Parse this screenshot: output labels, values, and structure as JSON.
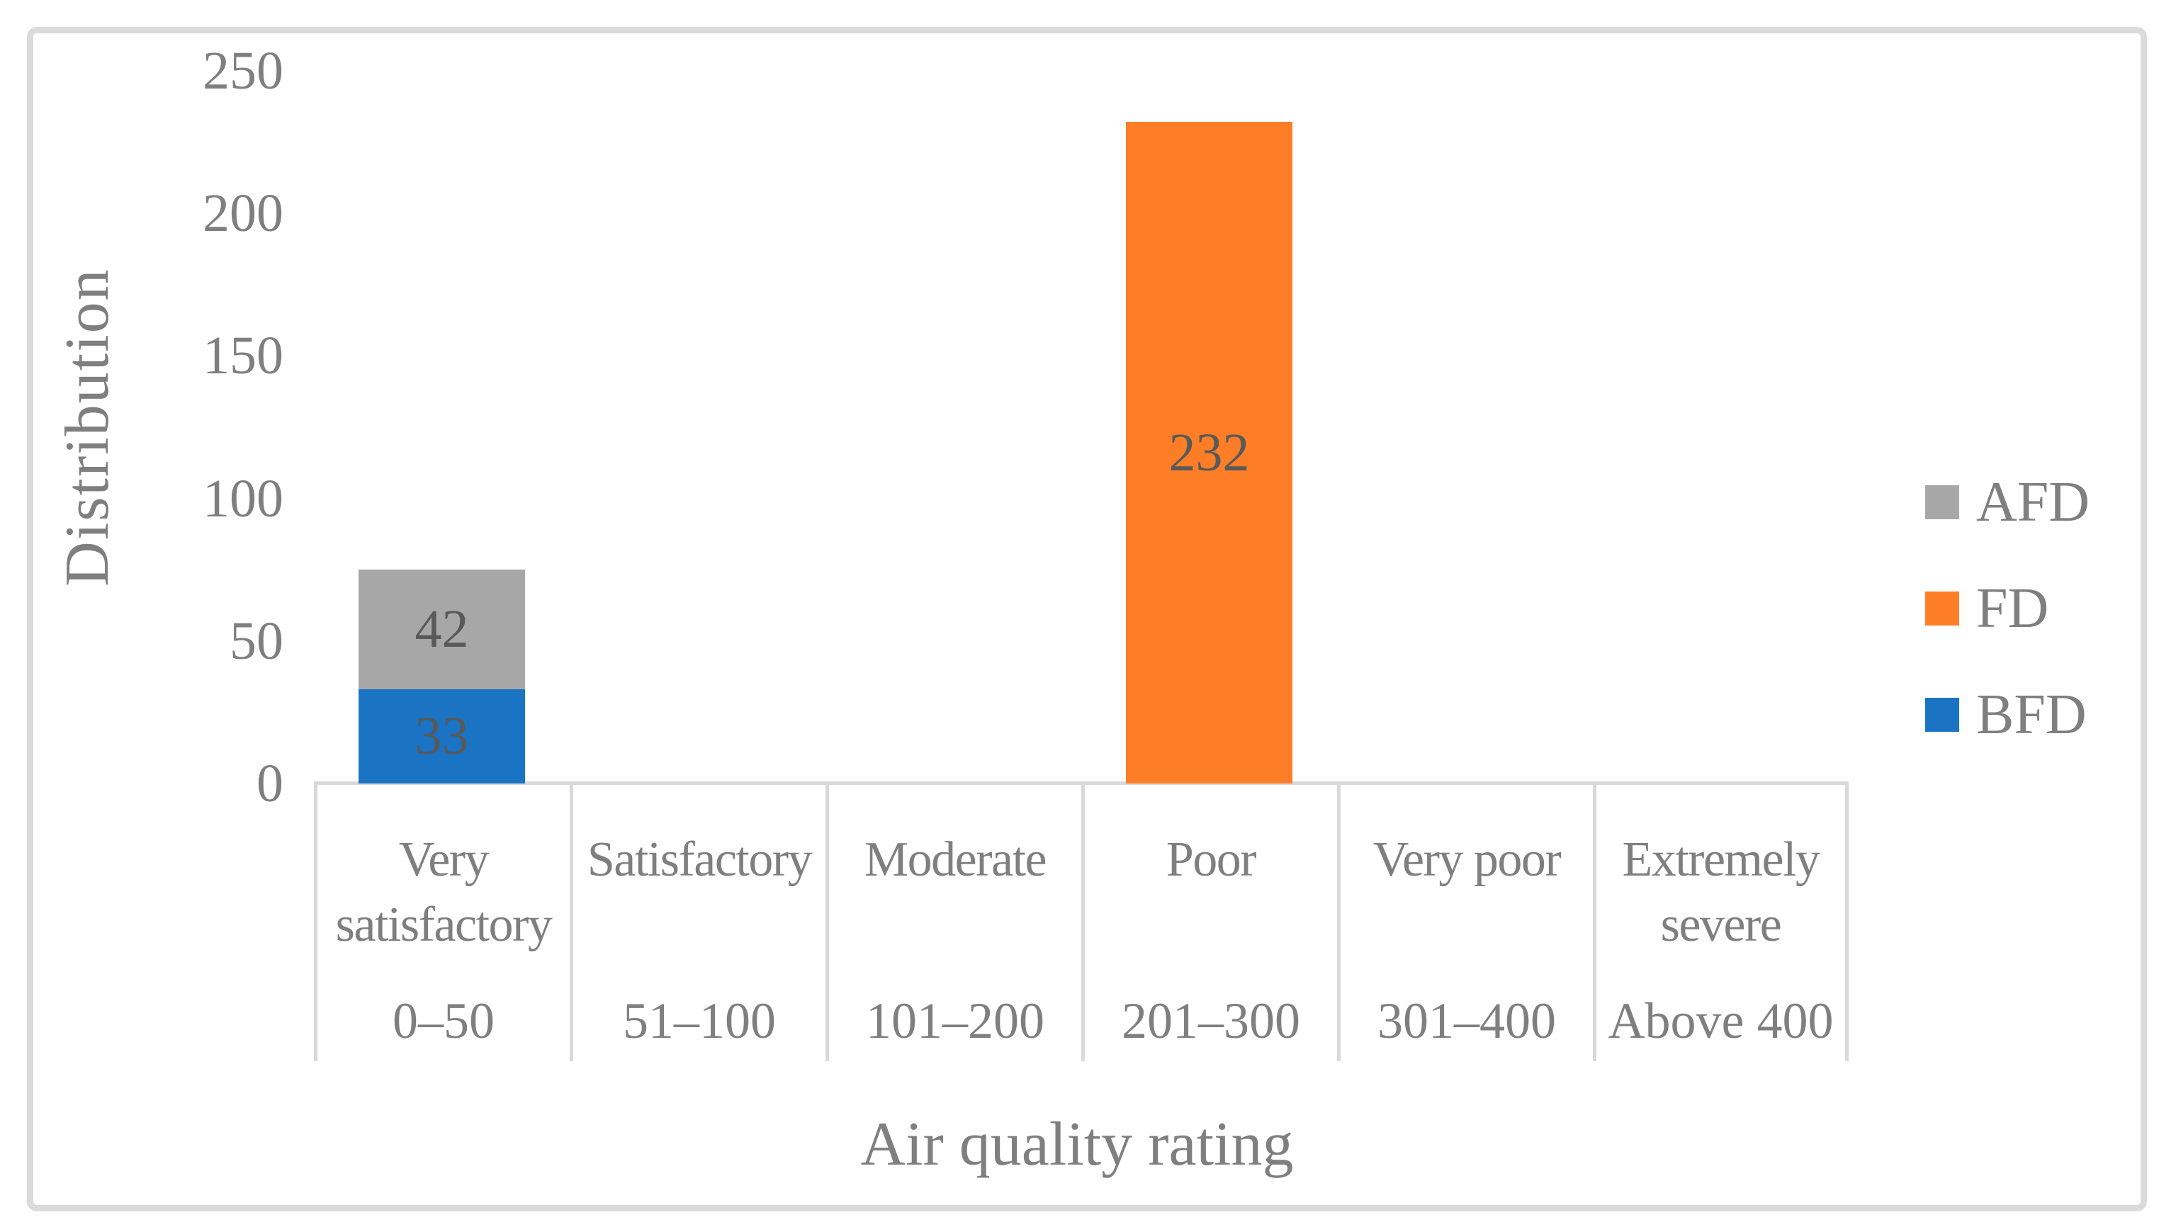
{
  "chart_data": {
    "type": "bar",
    "stacked": true,
    "xlabel": "Air quality rating",
    "ylabel": "Distribution",
    "ylim": [
      0,
      250
    ],
    "ytick_step": 50,
    "grid": false,
    "data_labels": true,
    "categories": [
      {
        "name": "Very satisfactory",
        "range": "0–50"
      },
      {
        "name": "Satisfactory",
        "range": "51–100"
      },
      {
        "name": "Moderate",
        "range": "101–200"
      },
      {
        "name": "Poor",
        "range": "201–300"
      },
      {
        "name": "Very poor",
        "range": "301–400"
      },
      {
        "name": "Extremely severe",
        "range": "Above 400"
      }
    ],
    "series": [
      {
        "name": "BFD",
        "color": "#1b73c4",
        "values": [
          33,
          0,
          0,
          0,
          0,
          0
        ]
      },
      {
        "name": "AFD",
        "color": "#a7a7a7",
        "values": [
          42,
          0,
          0,
          0,
          0,
          0
        ]
      },
      {
        "name": "FD",
        "color": "#fd7e27",
        "values": [
          0,
          0,
          0,
          232,
          0,
          0
        ]
      }
    ],
    "legend": {
      "position": "right",
      "entries": [
        "AFD",
        "FD",
        "BFD"
      ]
    },
    "colors": {
      "axis_text": "#7f7f7f",
      "data_label_text": "#595959",
      "axis_line": "#d9d9d9",
      "figure_border": "#dbdbdb",
      "background": "#ffffff"
    }
  }
}
